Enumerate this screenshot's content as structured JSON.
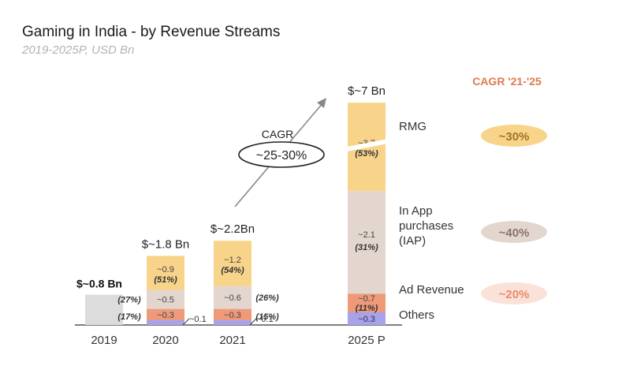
{
  "title": "Gaming in India - by Revenue Streams",
  "subtitle": "2019-2025P, USD Bn",
  "cagr_header": "CAGR '21-'25",
  "cagr_arrow_label": "CAGR",
  "cagr_arrow_value": "~25-30%",
  "colors": {
    "rmg": "#f8d38a",
    "iap": "#e3d6cf",
    "ad": "#ee9a7a",
    "others": "#a7a2ec",
    "total2019": "#dcdcdc",
    "cagr_header": "#e07a4f"
  },
  "chart_data": {
    "type": "bar",
    "categories": [
      "2019",
      "2020",
      "2021",
      "2025 P"
    ],
    "totals": [
      "$~0.8 Bn",
      "$~1.8 Bn",
      "$~2.2Bn",
      "$~7 Bn"
    ],
    "total_values": [
      0.8,
      1.8,
      2.2,
      7
    ],
    "series": [
      {
        "name": "Others",
        "values": [
          null,
          0.1,
          0.1,
          0.3
        ],
        "labels": [
          "",
          "~0.1",
          "~0.1",
          "~0.3"
        ],
        "shares": [
          "",
          "",
          "",
          ""
        ]
      },
      {
        "name": "Ad Revenue",
        "values": [
          null,
          0.3,
          0.3,
          0.7
        ],
        "labels": [
          "",
          "~0.3",
          "~0.3",
          "~0.7"
        ],
        "shares": [
          "",
          "(17%)",
          "(15%)",
          "(11%)"
        ]
      },
      {
        "name": "In App purchases (IAP)",
        "values": [
          null,
          0.5,
          0.6,
          2.1
        ],
        "labels": [
          "",
          "~0.5",
          "~0.6",
          "~2.1"
        ],
        "shares": [
          "",
          "(27%)",
          "(26%)",
          "(31%)"
        ]
      },
      {
        "name": "RMG",
        "values": [
          null,
          0.9,
          1.2,
          3.7
        ],
        "labels": [
          "",
          "~0.9",
          "~1.2",
          "~3.7"
        ],
        "shares": [
          "",
          "(51%)",
          "(54%)",
          "(53%)"
        ]
      }
    ],
    "legend": [
      {
        "label": "RMG",
        "cagr": "~30%",
        "color": "#f8d38a",
        "text_color": "#a0742a"
      },
      {
        "label": "In App\npurchases\n(IAP)",
        "cagr": "~40%",
        "color": "#e3d6cf",
        "text_color": "#8a7468"
      },
      {
        "label": "Ad Revenue",
        "cagr": "~20%",
        "color": "#fbe2d8",
        "text_color": "#e98a6a"
      },
      {
        "label": "Others",
        "cagr": "",
        "color": "#a7a2ec",
        "text_color": "#333"
      }
    ]
  }
}
